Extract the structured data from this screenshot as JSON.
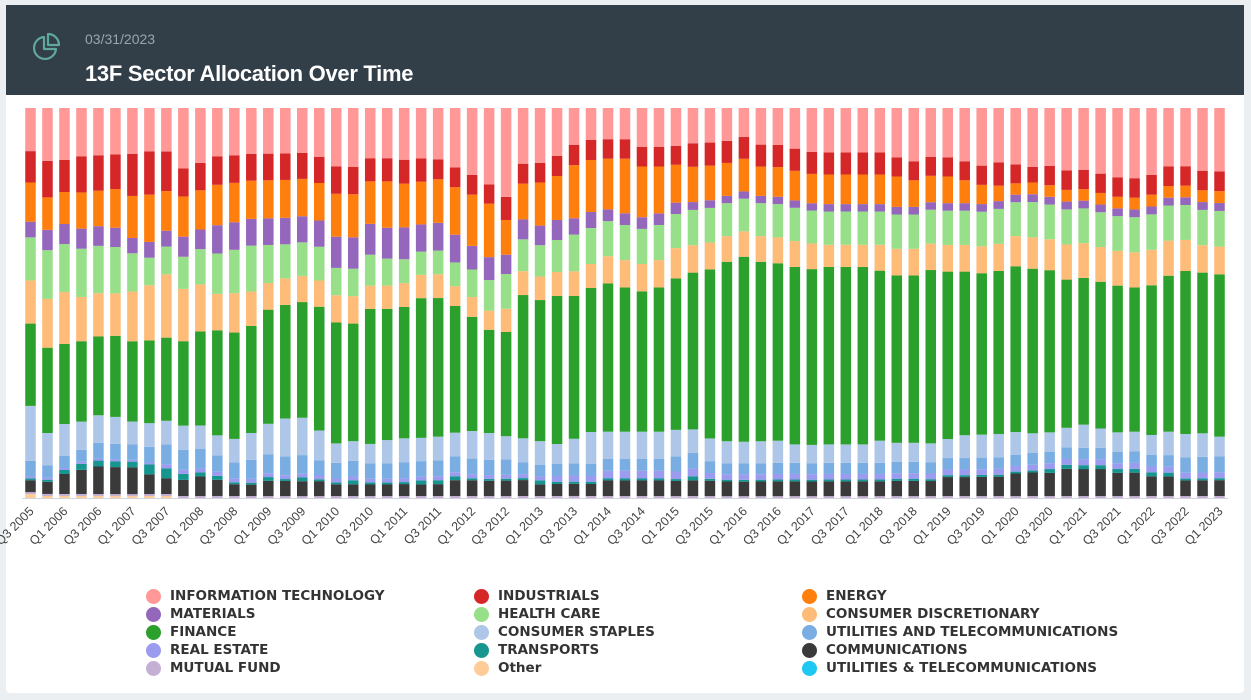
{
  "header": {
    "date": "03/31/2023",
    "title": "13F Sector Allocation Over Time",
    "icon": "pie-chart-icon"
  },
  "chart_data": {
    "type": "bar",
    "stacked": true,
    "normalized": true,
    "title": "13F Sector Allocation Over Time",
    "xlabel": "",
    "ylabel": "",
    "ylim": [
      0,
      100
    ],
    "grid": false,
    "legend_position": "bottom",
    "categories": [
      "Q3 2005",
      "Q4 2005",
      "Q1 2006",
      "Q2 2006",
      "Q3 2006",
      "Q4 2006",
      "Q1 2007",
      "Q2 2007",
      "Q3 2007",
      "Q4 2007",
      "Q1 2008",
      "Q2 2008",
      "Q3 2008",
      "Q4 2008",
      "Q1 2009",
      "Q2 2009",
      "Q3 2009",
      "Q4 2009",
      "Q1 2010",
      "Q2 2010",
      "Q3 2010",
      "Q4 2010",
      "Q1 2011",
      "Q2 2011",
      "Q3 2011",
      "Q4 2011",
      "Q1 2012",
      "Q2 2012",
      "Q3 2012",
      "Q4 2012",
      "Q1 2013",
      "Q2 2013",
      "Q3 2013",
      "Q4 2013",
      "Q1 2014",
      "Q2 2014",
      "Q3 2014",
      "Q4 2014",
      "Q1 2015",
      "Q2 2015",
      "Q3 2015",
      "Q4 2015",
      "Q1 2016",
      "Q2 2016",
      "Q3 2016",
      "Q4 2016",
      "Q1 2017",
      "Q2 2017",
      "Q3 2017",
      "Q4 2017",
      "Q1 2018",
      "Q2 2018",
      "Q3 2018",
      "Q4 2018",
      "Q1 2019",
      "Q2 2019",
      "Q3 2019",
      "Q4 2019",
      "Q1 2020",
      "Q2 2020",
      "Q3 2020",
      "Q4 2020",
      "Q1 2021",
      "Q2 2021",
      "Q3 2021",
      "Q4 2021",
      "Q1 2022",
      "Q2 2022",
      "Q3 2022",
      "Q4 2022",
      "Q1 2023"
    ],
    "tick_labels": [
      "Q3 2005",
      "Q1 2006",
      "Q3 2006",
      "Q1 2007",
      "Q3 2007",
      "Q1 2008",
      "Q3 2008",
      "Q1 2009",
      "Q3 2009",
      "Q1 2010",
      "Q3 2010",
      "Q1 2011",
      "Q3 2011",
      "Q1 2012",
      "Q3 2012",
      "Q1 2013",
      "Q3 2013",
      "Q1 2014",
      "Q3 2014",
      "Q1 2015",
      "Q3 2015",
      "Q1 2016",
      "Q3 2016",
      "Q1 2017",
      "Q3 2017",
      "Q1 2018",
      "Q3 2018",
      "Q1 2019",
      "Q3 2019",
      "Q1 2020",
      "Q3 2020",
      "Q1 2021",
      "Q3 2021",
      "Q1 2022",
      "Q3 2022",
      "Q1 2023"
    ],
    "series": [
      {
        "name": "Other",
        "color": "#ffcc99",
        "values": [
          1,
          0.5,
          0.5,
          0.5,
          0.5,
          0.5,
          0.5,
          0.5,
          0.5,
          0,
          0,
          0,
          0,
          0,
          0,
          0,
          0,
          0,
          0,
          0,
          0,
          0,
          0,
          0,
          0,
          0,
          0,
          0,
          0,
          0,
          0,
          0,
          0,
          0,
          0,
          0,
          0,
          0,
          0,
          0,
          0,
          0,
          0,
          0,
          0,
          0,
          0,
          0,
          0,
          0,
          0,
          0,
          0,
          0,
          0,
          0,
          0,
          0,
          0,
          0,
          0,
          0,
          0,
          0,
          0,
          0,
          0,
          0,
          0,
          0,
          0
        ]
      },
      {
        "name": "MUTUAL FUND",
        "color": "#c5b0d5",
        "values": [
          0.5,
          0.5,
          0.5,
          0.5,
          0.5,
          0.5,
          0.5,
          0.5,
          0.5,
          0.5,
          0.5,
          0.5,
          0.5,
          0.5,
          0.5,
          0.5,
          0.5,
          0.5,
          0.5,
          0.5,
          0.5,
          0.5,
          0.5,
          0.5,
          0.5,
          0.5,
          0.5,
          0.5,
          0.5,
          0.5,
          0.5,
          0.5,
          0.5,
          0.5,
          0.5,
          0.5,
          0.5,
          0.5,
          0.5,
          0.5,
          0.5,
          0.5,
          0.5,
          0.5,
          0.5,
          0.5,
          0.5,
          0.5,
          0.5,
          0.5,
          0.5,
          0.5,
          0.5,
          0.5,
          0.5,
          0.5,
          0.5,
          0.5,
          0.5,
          0.5,
          0.5,
          0.5,
          0.5,
          0.5,
          0.5,
          0.5,
          0.5,
          0.5,
          0.5,
          0.5,
          0.5
        ]
      },
      {
        "name": "COMMUNICATIONS",
        "color": "#3a3a3a",
        "values": [
          3,
          3,
          5,
          6,
          7,
          7,
          7,
          5,
          4,
          4,
          5,
          4,
          3,
          3,
          4,
          4,
          4,
          4,
          3,
          3,
          3,
          3,
          3,
          3,
          3,
          4,
          4,
          4,
          4,
          4,
          3,
          3,
          3,
          3,
          4,
          4,
          4,
          4,
          4,
          4,
          4,
          4,
          4,
          4,
          4,
          4,
          4,
          4,
          4,
          4,
          4,
          4,
          4,
          4,
          5,
          5,
          5,
          5,
          6,
          6,
          6,
          7,
          7,
          7,
          6,
          6,
          5,
          5,
          4,
          4,
          4
        ]
      },
      {
        "name": "UTILITIES & TELECOMMUNICATIONS",
        "color": "#1ec8f0",
        "values": [
          0,
          0,
          0,
          0,
          0,
          0,
          0,
          0,
          0,
          0,
          0,
          0,
          0,
          0,
          0,
          0,
          0,
          0,
          0,
          0,
          0,
          0,
          0,
          0,
          0,
          0,
          0,
          0,
          0,
          0,
          0,
          0,
          0,
          0,
          0,
          0,
          0,
          0,
          0,
          0,
          0,
          0,
          0,
          0,
          0,
          0,
          0,
          0,
          0,
          0,
          0,
          0,
          0,
          0,
          0,
          0,
          0,
          0,
          0,
          0,
          0,
          0,
          0,
          0,
          0,
          0,
          0,
          0,
          0,
          0,
          0
        ]
      },
      {
        "name": "TRANSPORTS",
        "color": "#17968f",
        "values": [
          0.5,
          0.5,
          1,
          1.5,
          1.5,
          1.5,
          1.5,
          2.5,
          2.5,
          1.5,
          1,
          1,
          0.5,
          0.5,
          1,
          0.5,
          1,
          0.5,
          0.5,
          1,
          0.5,
          0.5,
          0.5,
          1,
          1,
          1,
          0.5,
          0.5,
          0.5,
          0.5,
          1,
          0.5,
          0.5,
          0.5,
          0.5,
          0.5,
          0.5,
          0.5,
          0.5,
          1,
          0.5,
          0.5,
          0.5,
          0.5,
          0.5,
          0.5,
          0.5,
          0.5,
          0.5,
          0.5,
          0.5,
          0.5,
          0.5,
          0.5,
          0.5,
          0.5,
          0.5,
          0.5,
          0.5,
          0.5,
          1,
          1,
          1,
          1,
          1,
          1,
          1,
          1,
          0.5,
          0.5,
          0.5
        ]
      },
      {
        "name": "REAL ESTATE",
        "color": "#9b9bf0",
        "values": [
          0.5,
          0.5,
          0.5,
          0.5,
          0.5,
          0.5,
          0.5,
          0.5,
          1,
          1,
          1,
          1,
          1,
          1,
          1,
          1,
          1,
          1,
          1,
          1,
          1,
          1,
          1,
          1,
          1,
          1,
          1,
          1,
          1,
          1,
          1,
          1.5,
          1.5,
          1.5,
          2,
          2,
          2,
          2,
          2,
          2,
          1.5,
          1.5,
          1.5,
          1.5,
          1.5,
          1.5,
          1.5,
          1.5,
          1.5,
          1.5,
          1.5,
          1.5,
          1.5,
          1.5,
          1.5,
          1.5,
          1.5,
          1.5,
          1.5,
          1.5,
          1.5,
          1.5,
          1.5,
          1.5,
          1.5,
          1.5,
          1.5,
          1.5,
          1.5,
          1.5,
          1.5
        ]
      },
      {
        "name": "UTILITIES AND TELECOMMUNICATIONS",
        "color": "#7aaee3",
        "values": [
          4,
          3,
          3,
          3,
          4,
          4,
          4,
          4,
          5,
          5,
          5,
          4,
          4,
          5,
          5,
          5,
          5,
          4,
          4,
          4,
          4,
          4,
          4,
          4,
          4,
          4,
          4,
          4,
          4,
          3,
          3,
          3,
          3,
          3,
          3,
          3,
          3,
          3,
          4,
          4,
          3,
          3,
          3,
          3,
          3,
          3,
          3,
          3,
          3,
          3,
          3,
          3,
          3,
          3,
          3,
          3,
          3,
          3,
          3,
          3,
          3,
          3,
          3,
          3,
          3,
          3,
          3,
          3,
          4,
          4,
          4
        ]
      },
      {
        "name": "CONSUMER STAPLES",
        "color": "#aec7e8",
        "values": [
          14,
          8,
          8,
          7,
          7,
          7,
          6,
          6,
          6,
          6,
          6,
          5,
          6,
          7,
          8,
          10,
          10,
          8,
          5,
          5,
          5,
          6,
          6,
          6,
          6,
          6,
          7,
          7,
          6,
          6,
          6,
          5,
          6,
          8,
          7,
          7,
          7,
          7,
          7,
          6,
          6,
          6,
          6,
          6,
          6,
          5,
          5,
          5,
          5,
          5,
          6,
          5,
          5,
          5,
          5,
          6,
          6,
          6,
          6,
          5,
          5,
          5,
          6,
          5,
          5,
          5,
          5,
          6,
          6,
          6,
          5
        ]
      },
      {
        "name": "FINANCE",
        "color": "#2ca02c",
        "values": [
          21,
          21,
          20,
          20,
          20,
          21,
          21,
          21,
          21,
          21,
          24,
          26,
          27,
          28,
          30,
          30,
          31,
          33,
          31,
          30,
          35,
          34,
          33,
          36,
          35,
          32,
          29,
          27,
          27,
          36,
          36,
          37,
          35,
          36,
          38,
          37,
          36,
          37,
          40,
          40,
          44,
          49,
          51,
          49,
          48,
          48,
          48,
          48,
          48,
          48,
          46,
          44,
          44,
          46,
          44,
          43,
          42,
          42,
          44,
          42,
          42,
          38,
          38,
          38,
          38,
          37,
          38,
          40,
          42,
          41,
          41
        ]
      },
      {
        "name": "CONSUMER DISCRETIONARY",
        "color": "#ffbb78",
        "values": [
          11,
          12,
          13,
          11,
          11,
          11,
          13,
          14,
          16,
          13,
          12,
          9,
          10,
          9,
          7,
          7,
          7,
          7,
          7,
          7,
          6,
          6,
          6,
          6,
          6,
          5,
          5,
          5,
          6,
          6,
          6,
          6,
          6,
          6,
          7,
          7,
          7,
          7,
          8,
          7,
          7,
          7,
          7,
          7,
          7,
          7,
          7,
          6,
          6,
          6,
          7,
          7,
          7,
          7,
          7,
          7,
          7,
          7,
          8,
          8,
          8,
          9,
          9,
          9,
          9,
          9,
          9,
          9,
          8,
          7,
          7
        ]
      },
      {
        "name": "HEALTH CARE",
        "color": "#98df8a",
        "values": [
          11,
          12,
          12,
          12,
          12,
          12,
          10,
          7,
          7,
          8,
          9,
          10,
          11,
          12,
          10,
          9,
          9,
          9,
          7,
          7,
          8,
          7,
          6,
          6,
          6,
          6,
          7,
          8,
          9,
          8,
          8,
          8,
          9,
          9,
          9,
          9,
          9,
          9,
          9,
          9,
          9,
          9,
          9,
          9,
          9,
          9,
          9,
          9,
          9,
          9,
          9,
          9,
          9,
          9,
          9,
          9,
          9,
          9,
          9,
          9,
          9,
          9,
          9,
          9,
          9,
          9,
          9,
          9,
          9,
          9,
          9
        ]
      },
      {
        "name": "MATERIALS",
        "color": "#9467bd",
        "values": [
          4,
          5,
          5,
          5,
          5,
          5,
          4,
          4,
          4,
          5,
          5,
          7,
          7,
          7,
          7,
          7,
          7,
          7,
          8,
          8,
          8,
          8,
          8,
          7,
          7,
          7,
          6,
          6,
          5,
          5,
          5,
          5,
          4,
          4,
          3,
          3,
          3,
          3,
          3,
          2,
          2,
          2,
          2,
          2,
          2,
          2,
          2,
          2,
          2,
          2,
          2,
          2,
          2,
          2,
          2,
          2,
          2,
          2,
          2,
          2,
          2,
          2,
          2,
          2,
          2,
          2,
          2,
          2,
          2,
          2,
          2
        ]
      },
      {
        "name": "ENERGY",
        "color": "#ff7f0e",
        "values": [
          10,
          8,
          8,
          9,
          9,
          10,
          11,
          12,
          10,
          10,
          10,
          10,
          10,
          10,
          10,
          10,
          10,
          10,
          11,
          11,
          11,
          12,
          11,
          11,
          11,
          12,
          13,
          14,
          9,
          9,
          11,
          11,
          13,
          13,
          13,
          14,
          13,
          12,
          10,
          9,
          9,
          9,
          9,
          8,
          8,
          8,
          8,
          8,
          8,
          8,
          8,
          8,
          7,
          7,
          7,
          6,
          5,
          4,
          3,
          3,
          3,
          3,
          3,
          3,
          3,
          3,
          3,
          3,
          3,
          3,
          3
        ]
      },
      {
        "name": "INDUSTRIALS",
        "color": "#d62728",
        "values": [
          8,
          9,
          8,
          9,
          9,
          9,
          11,
          11,
          10,
          7,
          7,
          7,
          7,
          7,
          7,
          7,
          7,
          7,
          7,
          7,
          6,
          6,
          6,
          6,
          5,
          5,
          5,
          5,
          6,
          5,
          5,
          5,
          5,
          5,
          5,
          5,
          5,
          5,
          5,
          6,
          6,
          6,
          6,
          6,
          6,
          6,
          6,
          6,
          6,
          6,
          6,
          5,
          5,
          5,
          5,
          5,
          5,
          6,
          5,
          4,
          5,
          5,
          5,
          5,
          5,
          5,
          5,
          5,
          5,
          5,
          5
        ]
      },
      {
        "name": "INFORMATION TECHNOLOGY",
        "color": "#ff9896",
        "values": [
          11,
          13,
          13,
          12,
          12,
          12,
          12,
          11,
          11,
          15,
          14,
          12,
          12,
          12,
          12,
          12,
          12,
          13,
          15,
          15,
          13,
          13,
          13,
          13,
          13,
          15,
          17,
          20,
          23,
          14,
          14,
          12,
          9,
          8,
          8,
          8,
          10,
          10,
          10,
          9,
          9,
          9,
          8,
          10,
          10,
          11,
          12,
          12,
          12,
          12,
          12,
          13,
          14,
          13,
          13,
          14,
          15,
          14,
          15,
          15,
          15,
          16,
          16,
          17,
          18,
          18,
          17,
          15,
          15,
          16,
          16
        ]
      }
    ]
  },
  "legend": {
    "items": [
      {
        "label": "INFORMATION TECHNOLOGY",
        "color": "#ff9896"
      },
      {
        "label": "INDUSTRIALS",
        "color": "#d62728"
      },
      {
        "label": "ENERGY",
        "color": "#ff7f0e"
      },
      {
        "label": "MATERIALS",
        "color": "#9467bd"
      },
      {
        "label": "HEALTH CARE",
        "color": "#98df8a"
      },
      {
        "label": "CONSUMER DISCRETIONARY",
        "color": "#ffbb78"
      },
      {
        "label": "FINANCE",
        "color": "#2ca02c"
      },
      {
        "label": "CONSUMER STAPLES",
        "color": "#aec7e8"
      },
      {
        "label": "UTILITIES AND TELECOMMUNICATIONS",
        "color": "#7aaee3"
      },
      {
        "label": "REAL ESTATE",
        "color": "#9b9bf0"
      },
      {
        "label": "TRANSPORTS",
        "color": "#17968f"
      },
      {
        "label": "COMMUNICATIONS",
        "color": "#3a3a3a"
      },
      {
        "label": "MUTUAL FUND",
        "color": "#c5b0d5"
      },
      {
        "label": "Other",
        "color": "#ffcc99"
      },
      {
        "label": "UTILITIES & TELECOMMUNICATIONS",
        "color": "#1ec8f0"
      }
    ]
  }
}
